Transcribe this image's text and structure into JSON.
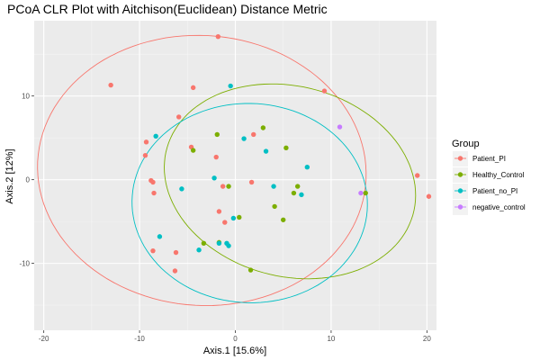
{
  "chart_data": {
    "type": "scatter",
    "title": "PCoA CLR Plot with Aitchison(Euclidean) Distance Metric",
    "xlabel": "Axis.1   [15.6%]",
    "ylabel": "Axis.2   [12%]",
    "xlim": [
      -21,
      21
    ],
    "ylim": [
      -18,
      19
    ],
    "xticks": [
      -20,
      -10,
      0,
      10,
      20
    ],
    "yticks": [
      -10,
      0,
      10
    ],
    "grid": true,
    "legend": {
      "title": "Group",
      "position": "right",
      "entries": [
        "Patient_PI",
        "Healthy_Control",
        "Patient_no_PI",
        "negative_control"
      ]
    },
    "colors": {
      "Patient_PI": "#F8766D",
      "Healthy_Control": "#7CAE00",
      "Patient_no_PI": "#00BFC4",
      "negative_control": "#C77CFF",
      "panel_background": "#EBEBEB",
      "grid_major": "#FFFFFF",
      "grid_minor": "#F5F5F5"
    },
    "series": [
      {
        "name": "Patient_PI",
        "ellipse": {
          "cx": -3.5,
          "cy": 1.1,
          "rx": 17.2,
          "ry": 16.1,
          "angle": -12
        },
        "points": [
          [
            -1.8,
            17.1
          ],
          [
            -13.0,
            11.3
          ],
          [
            -4.4,
            11.0
          ],
          [
            9.3,
            10.6
          ],
          [
            -5.9,
            7.5
          ],
          [
            -9.3,
            4.5
          ],
          [
            -4.6,
            3.9
          ],
          [
            -9.4,
            2.9
          ],
          [
            -2.0,
            2.7
          ],
          [
            -8.8,
            -0.1
          ],
          [
            -8.6,
            -0.3
          ],
          [
            -8.5,
            -1.6
          ],
          [
            -1.3,
            -0.8
          ],
          [
            -1.7,
            -3.8
          ],
          [
            1.7,
            -0.3
          ],
          [
            -1.1,
            -5.1
          ],
          [
            -8.6,
            -8.5
          ],
          [
            -6.2,
            -8.7
          ],
          [
            -6.3,
            -10.9
          ],
          [
            1.9,
            5.4
          ],
          [
            19.0,
            0.5
          ],
          [
            20.2,
            -2.0
          ]
        ]
      },
      {
        "name": "Healthy_Control",
        "ellipse": {
          "cx": 5.7,
          "cy": -0.2,
          "rx": 13.5,
          "ry": 11.2,
          "angle": -25
        },
        "points": [
          [
            -1.9,
            5.4
          ],
          [
            2.9,
            6.2
          ],
          [
            5.3,
            3.8
          ],
          [
            -4.4,
            3.5
          ],
          [
            -0.7,
            -0.8
          ],
          [
            6.5,
            -0.8
          ],
          [
            6.1,
            -1.6
          ],
          [
            0.4,
            -4.5
          ],
          [
            4.1,
            -3.2
          ],
          [
            5.0,
            -4.8
          ],
          [
            -3.3,
            -7.6
          ],
          [
            -1.7,
            -7.5
          ],
          [
            1.6,
            -10.8
          ],
          [
            13.6,
            -1.6
          ]
        ]
      },
      {
        "name": "Patient_no_PI",
        "ellipse": {
          "cx": 1.5,
          "cy": -2.8,
          "rx": 12.3,
          "ry": 11.9,
          "angle": -10
        },
        "points": [
          [
            -0.5,
            11.2
          ],
          [
            -8.3,
            5.2
          ],
          [
            0.9,
            4.9
          ],
          [
            3.2,
            3.4
          ],
          [
            7.5,
            1.5
          ],
          [
            -2.2,
            0.2
          ],
          [
            4.0,
            -0.8
          ],
          [
            -5.6,
            -1.1
          ],
          [
            6.9,
            -1.8
          ],
          [
            -0.2,
            -4.6
          ],
          [
            -1.7,
            -7.6
          ],
          [
            -0.9,
            -7.6
          ],
          [
            -7.9,
            -6.8
          ],
          [
            -3.8,
            -8.4
          ],
          [
            -0.7,
            -7.9
          ]
        ]
      },
      {
        "name": "negative_control",
        "points": [
          [
            10.9,
            6.3
          ],
          [
            13.1,
            -1.6
          ]
        ]
      }
    ]
  }
}
